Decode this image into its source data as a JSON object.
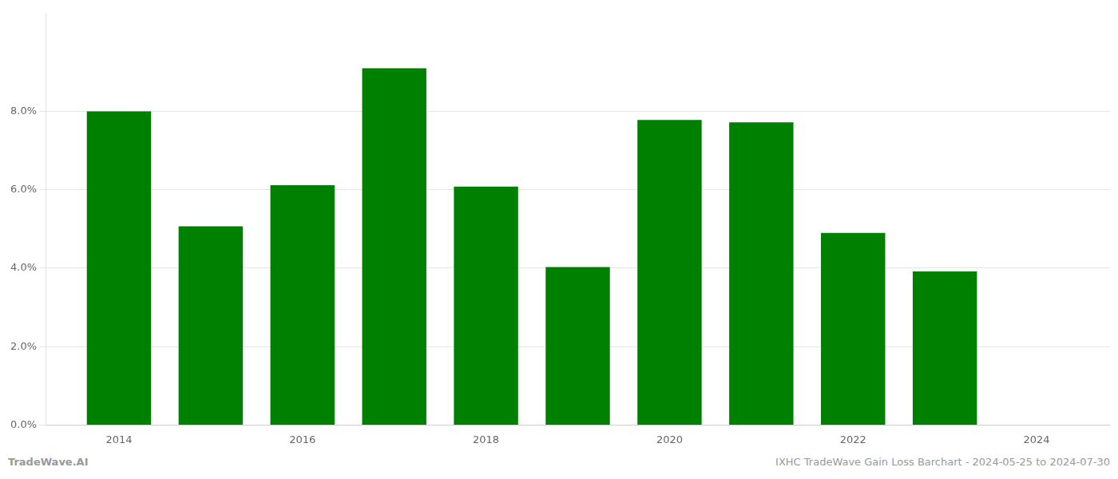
{
  "chart_data": {
    "type": "bar",
    "title": "IXHC TradeWave Gain Loss Barchart - 2024-05-25 to 2024-07-30",
    "annotations": [
      "TradeWave.AI"
    ],
    "x": [
      2014,
      2015,
      2016,
      2017,
      2018,
      2019,
      2020,
      2021,
      2022,
      2023
    ],
    "values": [
      0.08,
      0.0507,
      0.0612,
      0.091,
      0.0608,
      0.0403,
      0.0778,
      0.0772,
      0.049,
      0.0392
    ],
    "color": "#008000",
    "xlim": [
      2013.2,
      2024.8
    ],
    "xticks": [
      2014,
      2016,
      2018,
      2020,
      2022,
      2024
    ],
    "ylim": [
      0,
      0.105
    ],
    "yticks": [
      {
        "value": 0.0,
        "label": "0.0%"
      },
      {
        "value": 0.02,
        "label": "2.0%"
      },
      {
        "value": 0.04,
        "label": "4.0%"
      },
      {
        "value": 0.06,
        "label": "6.0%"
      },
      {
        "value": 0.08,
        "label": "8.0%"
      }
    ],
    "grid": true
  }
}
